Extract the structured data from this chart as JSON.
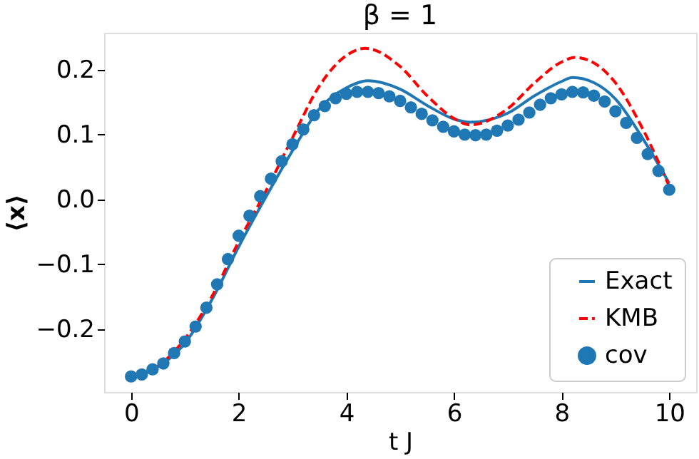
{
  "chart_data": {
    "type": "line",
    "title": "β = 1",
    "xlabel": "t J",
    "ylabel": "⟨x⟩",
    "xlim": [
      -0.5,
      10.5
    ],
    "ylim": [
      -0.297,
      0.257
    ],
    "xticks": [
      0,
      2,
      4,
      6,
      8,
      10
    ],
    "yticks": [
      {
        "value": -0.2,
        "label": "−0.2"
      },
      {
        "value": -0.1,
        "label": "−0.1"
      },
      {
        "value": 0.0,
        "label": "0.0"
      },
      {
        "value": 0.1,
        "label": "0.1"
      },
      {
        "value": 0.2,
        "label": "0.2"
      }
    ],
    "grid": false,
    "legend": "bottom right",
    "series": [
      {
        "name": "Exact",
        "color": "#1f77b4",
        "line_style": "solid",
        "marker": "none",
        "x": [
          0,
          0.5,
          1,
          1.5,
          2,
          2.5,
          3,
          3.5,
          4,
          4.4,
          5,
          5.5,
          6,
          6.3,
          7,
          7.5,
          8,
          8.2,
          8.6,
          9,
          9.5,
          10
        ],
        "values": [
          -0.273,
          -0.258,
          -0.222,
          -0.155,
          -0.073,
          0.003,
          0.075,
          0.14,
          0.172,
          0.183,
          0.17,
          0.145,
          0.124,
          0.119,
          0.133,
          0.16,
          0.182,
          0.188,
          0.18,
          0.155,
          0.095,
          0.025
        ]
      },
      {
        "name": "KMB",
        "color": "#ff0000",
        "line_style": "dashed",
        "marker": "none",
        "x": [
          0,
          0.5,
          1,
          1.5,
          2,
          2.5,
          3,
          3.5,
          4,
          4.35,
          5,
          5.5,
          6,
          6.3,
          7,
          7.5,
          8,
          8.25,
          8.7,
          9,
          9.5,
          10
        ],
        "values": [
          -0.273,
          -0.257,
          -0.215,
          -0.15,
          -0.065,
          0.012,
          0.095,
          0.175,
          0.222,
          0.233,
          0.205,
          0.16,
          0.125,
          0.115,
          0.14,
          0.18,
          0.212,
          0.219,
          0.205,
          0.18,
          0.11,
          0.02
        ]
      },
      {
        "name": "cov",
        "type": "scatter",
        "color": "#1f77b4",
        "marker": "circle",
        "x": [
          0,
          0.2,
          0.4,
          0.6,
          0.8,
          1.0,
          1.2,
          1.4,
          1.6,
          1.8,
          2.0,
          2.2,
          2.4,
          2.6,
          2.8,
          3.0,
          3.2,
          3.4,
          3.6,
          3.8,
          4.0,
          4.2,
          4.4,
          4.6,
          4.8,
          5.0,
          5.2,
          5.4,
          5.6,
          5.8,
          6.0,
          6.2,
          6.4,
          6.6,
          6.8,
          7.0,
          7.2,
          7.4,
          7.6,
          7.8,
          8.0,
          8.2,
          8.4,
          8.6,
          8.8,
          9.0,
          9.2,
          9.4,
          9.6,
          9.8,
          10.0
        ],
        "values": [
          -0.273,
          -0.27,
          -0.262,
          -0.253,
          -0.237,
          -0.219,
          -0.196,
          -0.167,
          -0.131,
          -0.092,
          -0.056,
          -0.025,
          0.005,
          0.032,
          0.059,
          0.085,
          0.108,
          0.13,
          0.144,
          0.156,
          0.163,
          0.166,
          0.166,
          0.164,
          0.159,
          0.152,
          0.142,
          0.132,
          0.122,
          0.112,
          0.105,
          0.1,
          0.099,
          0.1,
          0.106,
          0.114,
          0.123,
          0.134,
          0.146,
          0.156,
          0.162,
          0.166,
          0.165,
          0.16,
          0.151,
          0.136,
          0.118,
          0.095,
          0.07,
          0.044,
          0.015
        ]
      }
    ]
  }
}
